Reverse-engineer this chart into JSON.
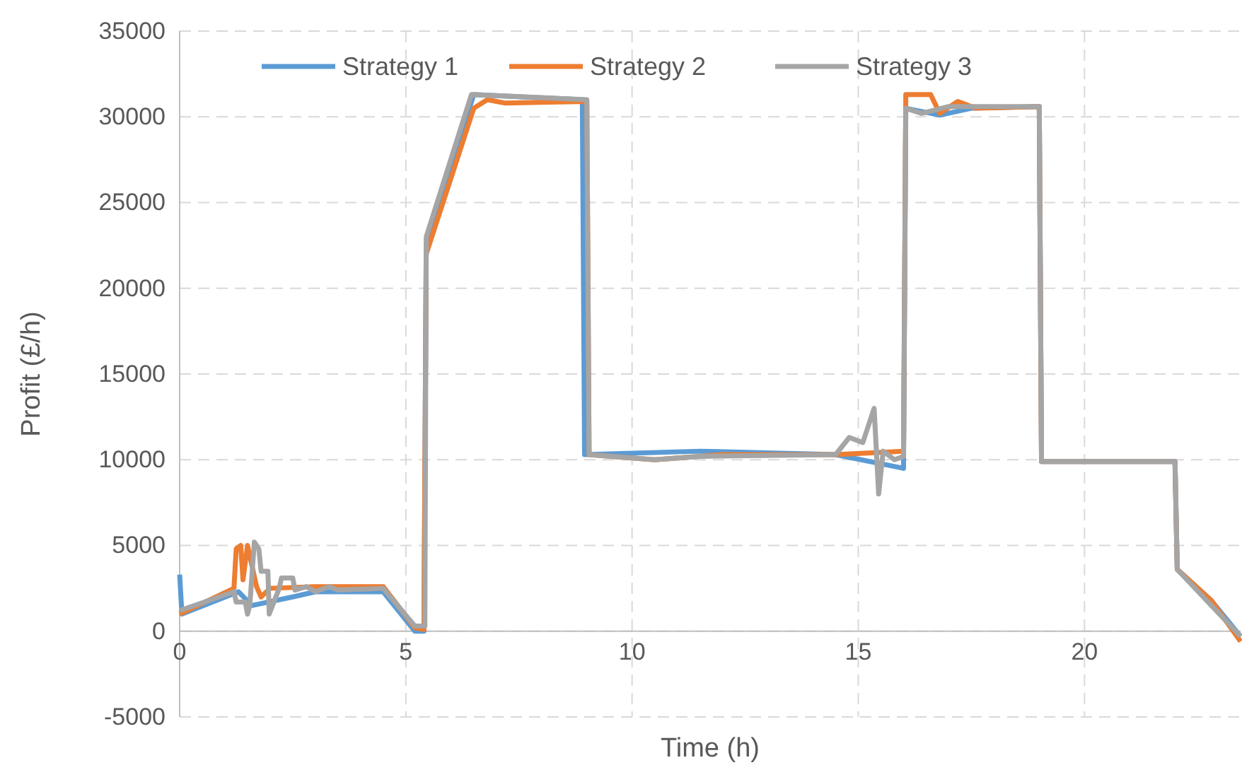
{
  "chart_data": {
    "type": "line",
    "xlabel": "Time (h)",
    "ylabel": "Profit (£/h)",
    "xlim": [
      0,
      23.45
    ],
    "xticks": [
      0,
      5,
      10,
      15,
      20
    ],
    "ylim": [
      -5000,
      35000
    ],
    "yticks": [
      -5000,
      0,
      5000,
      10000,
      15000,
      20000,
      25000,
      30000,
      35000
    ],
    "grid": true,
    "legend": "top",
    "line_style": "solid",
    "marker": "none",
    "series": [
      {
        "name": "Strategy 1",
        "color": "#5b9bd5",
        "x": [
          0,
          0.05,
          1.3,
          1.6,
          2.5,
          3,
          4.5,
          5.2,
          5.4,
          5.45,
          6.5,
          8.9,
          8.95,
          11.5,
          14.5,
          16,
          16.05,
          16.8,
          17.5,
          19,
          19.05,
          22,
          22.05,
          22.8,
          23.45
        ],
        "values": [
          3300,
          1000,
          2300,
          1500,
          2000,
          2300,
          2300,
          0,
          0,
          22500,
          31300,
          31000,
          10300,
          10500,
          10300,
          9500,
          30500,
          30100,
          30500,
          30600,
          9900,
          9900,
          3600,
          1800,
          -300
        ]
      },
      {
        "name": "Strategy 2",
        "color": "#ed7d31",
        "x": [
          0,
          1.2,
          1.25,
          1.35,
          1.4,
          1.5,
          1.7,
          1.8,
          2,
          3,
          4.5,
          5.2,
          5.4,
          5.45,
          6.5,
          6.8,
          7.2,
          9,
          9.05,
          10.5,
          12,
          14.5,
          16,
          16.05,
          16.6,
          16.8,
          17.2,
          17.6,
          19,
          19.05,
          22,
          22.05,
          22.8,
          23.45
        ],
        "values": [
          1000,
          2500,
          4800,
          5000,
          3000,
          5000,
          2600,
          2000,
          2500,
          2600,
          2600,
          200,
          100,
          22000,
          30500,
          31000,
          30800,
          30900,
          10300,
          10000,
          10300,
          10300,
          10500,
          31300,
          31300,
          30200,
          30900,
          30500,
          30600,
          9900,
          9900,
          3600,
          1800,
          -600
        ]
      },
      {
        "name": "Strategy 3",
        "color": "#a5a5a5",
        "x": [
          0,
          1.2,
          1.25,
          1.45,
          1.5,
          1.55,
          1.65,
          1.75,
          1.8,
          1.95,
          1.98,
          2.2,
          2.25,
          2.5,
          2.55,
          2.8,
          3,
          3.3,
          3.5,
          4.5,
          5.2,
          5.42,
          5.45,
          6.45,
          9,
          9.05,
          10.5,
          11.5,
          14.5,
          14.8,
          15.1,
          15.35,
          15.45,
          15.55,
          15.8,
          16,
          16.05,
          16.4,
          17,
          19,
          19.05,
          22,
          22.05,
          23.45
        ],
        "values": [
          1200,
          2300,
          1700,
          1700,
          1000,
          1500,
          5200,
          4800,
          3500,
          3500,
          1000,
          2500,
          3100,
          3100,
          2400,
          2600,
          2300,
          2600,
          2400,
          2500,
          300,
          300,
          23000,
          31300,
          31000,
          10300,
          10000,
          10200,
          10300,
          11300,
          11000,
          13000,
          8000,
          10500,
          10000,
          10200,
          30500,
          30200,
          30600,
          30600,
          9900,
          9900,
          3600,
          -300
        ]
      }
    ]
  }
}
